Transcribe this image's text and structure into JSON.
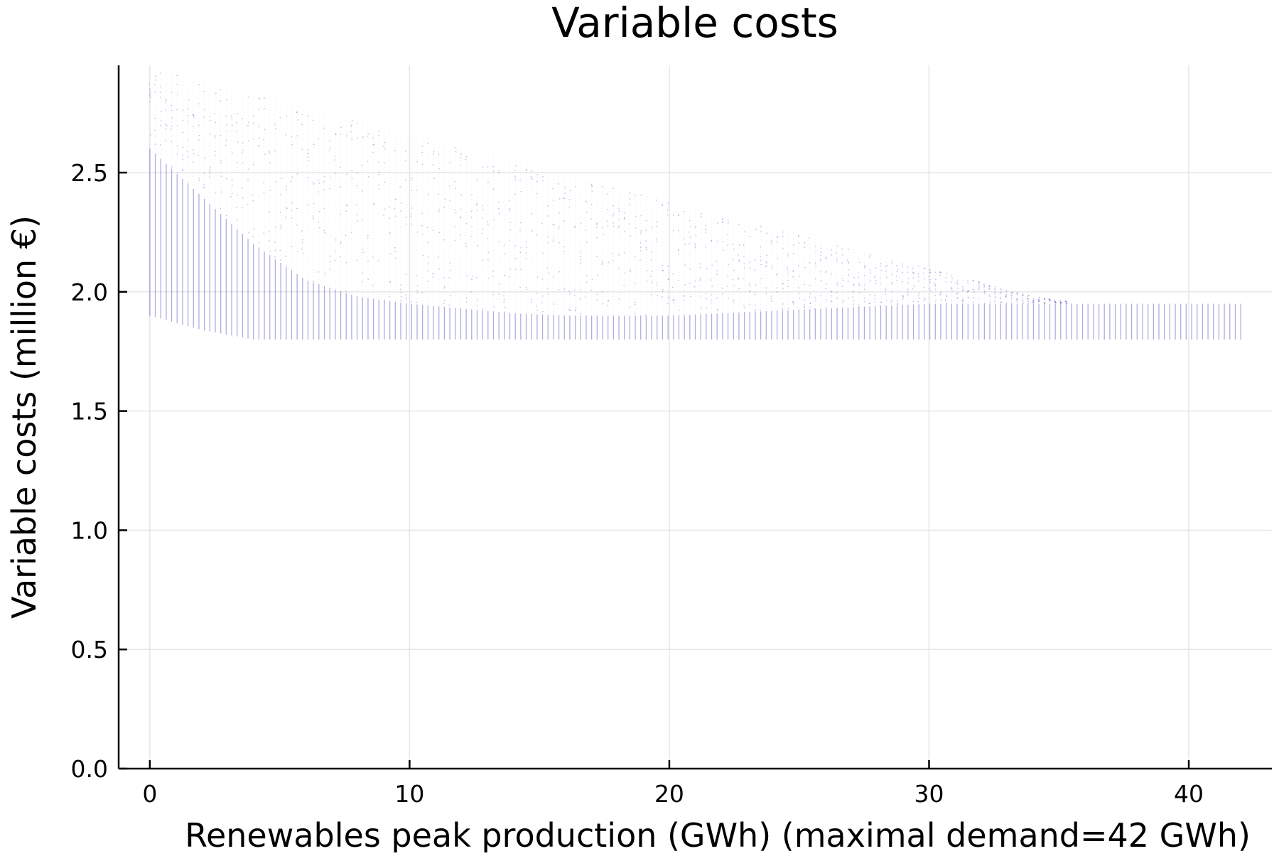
{
  "chart_data": {
    "type": "scatter",
    "title": "Variable costs",
    "xlabel": "Renewables peak production (GWh) (maximal demand=42 GWh)",
    "ylabel": "Variable costs (million €)",
    "xlim": [
      -1.2,
      43.2
    ],
    "ylim": [
      0,
      2.95
    ],
    "x_ticks": [
      0,
      10,
      20,
      30,
      40
    ],
    "x_tick_labels": [
      "0",
      "10",
      "20",
      "30",
      "40"
    ],
    "y_ticks": [
      0.0,
      0.5,
      1.0,
      1.5,
      2.0,
      2.5
    ],
    "y_tick_labels": [
      "0.0",
      "0.5",
      "1.0",
      "1.5",
      "2.0",
      "2.5"
    ],
    "grid": true,
    "legend": "none",
    "marker_color": "#0000aa",
    "x_range": [
      0,
      42
    ],
    "series": [
      {
        "x": [
          0,
          2,
          4,
          6,
          8,
          10,
          12,
          14,
          16,
          18,
          20,
          22,
          24,
          26,
          28,
          30,
          32,
          34,
          36,
          38,
          40,
          42
        ],
        "y_min": [
          1.9,
          1.84,
          1.8,
          1.8,
          1.8,
          1.8,
          1.8,
          1.8,
          1.8,
          1.8,
          1.8,
          1.8,
          1.8,
          1.8,
          1.8,
          1.8,
          1.8,
          1.8,
          1.8,
          1.8,
          1.8,
          1.8
        ],
        "y_max": [
          2.94,
          2.88,
          2.83,
          2.77,
          2.72,
          2.66,
          2.6,
          2.55,
          2.49,
          2.43,
          2.38,
          2.32,
          2.27,
          2.21,
          2.15,
          2.1,
          2.04,
          1.98,
          1.95,
          1.95,
          1.95,
          1.95
        ],
        "dense_y_max": [
          2.6,
          2.4,
          2.2,
          2.05,
          1.98,
          1.95,
          1.93,
          1.91,
          1.9,
          1.9,
          1.9,
          1.91,
          1.92,
          1.93,
          1.94,
          1.95,
          1.95,
          1.95,
          1.95,
          1.95,
          1.95,
          1.95
        ]
      }
    ]
  }
}
